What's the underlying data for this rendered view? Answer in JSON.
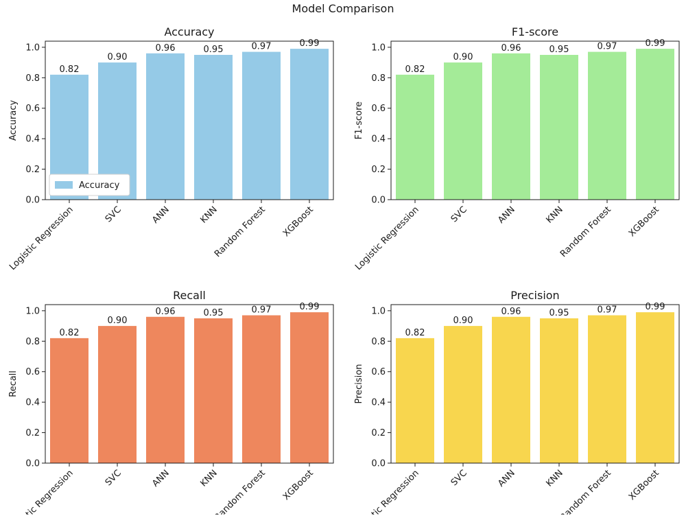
{
  "figure": {
    "title": "Model Comparison"
  },
  "colors": {
    "Accuracy": "#95cae7",
    "F1-score": "#a4eb98",
    "Recall": "#ee875d",
    "Precision": "#f8d64e"
  },
  "chart_data": [
    {
      "type": "bar",
      "title": "Accuracy",
      "xlabel": "",
      "ylabel": "Accuracy",
      "categories": [
        "Logistic Regression",
        "SVC",
        "ANN",
        "KNN",
        "Random Forest",
        "XGBoost"
      ],
      "values": [
        0.82,
        0.9,
        0.96,
        0.95,
        0.97,
        0.99
      ],
      "data_labels": [
        "0.82",
        "0.90",
        "0.96",
        "0.95",
        "0.97",
        "0.99"
      ],
      "ylim": [
        0,
        1.04
      ],
      "yticks": [
        "0.0",
        "0.2",
        "0.4",
        "0.6",
        "0.8",
        "1.0"
      ],
      "legend": {
        "entries": [
          "Accuracy"
        ],
        "position": "lower-left"
      },
      "grid": false
    },
    {
      "type": "bar",
      "title": "F1-score",
      "xlabel": "",
      "ylabel": "F1-score",
      "categories": [
        "Logistic Regression",
        "SVC",
        "ANN",
        "KNN",
        "Random Forest",
        "XGBoost"
      ],
      "values": [
        0.82,
        0.9,
        0.96,
        0.95,
        0.97,
        0.99
      ],
      "data_labels": [
        "0.82",
        "0.90",
        "0.96",
        "0.95",
        "0.97",
        "0.99"
      ],
      "ylim": [
        0,
        1.04
      ],
      "yticks": [
        "0.0",
        "0.2",
        "0.4",
        "0.6",
        "0.8",
        "1.0"
      ],
      "legend": null,
      "grid": false
    },
    {
      "type": "bar",
      "title": "Recall",
      "xlabel": "",
      "ylabel": "Recall",
      "categories": [
        "Logistic Regression",
        "SVC",
        "ANN",
        "KNN",
        "Random Forest",
        "XGBoost"
      ],
      "values": [
        0.82,
        0.9,
        0.96,
        0.95,
        0.97,
        0.99
      ],
      "data_labels": [
        "0.82",
        "0.90",
        "0.96",
        "0.95",
        "0.97",
        "0.99"
      ],
      "ylim": [
        0,
        1.04
      ],
      "yticks": [
        "0.0",
        "0.2",
        "0.4",
        "0.6",
        "0.8",
        "1.0"
      ],
      "legend": null,
      "grid": false
    },
    {
      "type": "bar",
      "title": "Precision",
      "xlabel": "",
      "ylabel": "Precision",
      "categories": [
        "Logistic Regression",
        "SVC",
        "ANN",
        "KNN",
        "Random Forest",
        "XGBoost"
      ],
      "values": [
        0.82,
        0.9,
        0.96,
        0.95,
        0.97,
        0.99
      ],
      "data_labels": [
        "0.82",
        "0.90",
        "0.96",
        "0.95",
        "0.97",
        "0.99"
      ],
      "ylim": [
        0,
        1.04
      ],
      "yticks": [
        "0.0",
        "0.2",
        "0.4",
        "0.6",
        "0.8",
        "1.0"
      ],
      "legend": null,
      "grid": false
    }
  ]
}
